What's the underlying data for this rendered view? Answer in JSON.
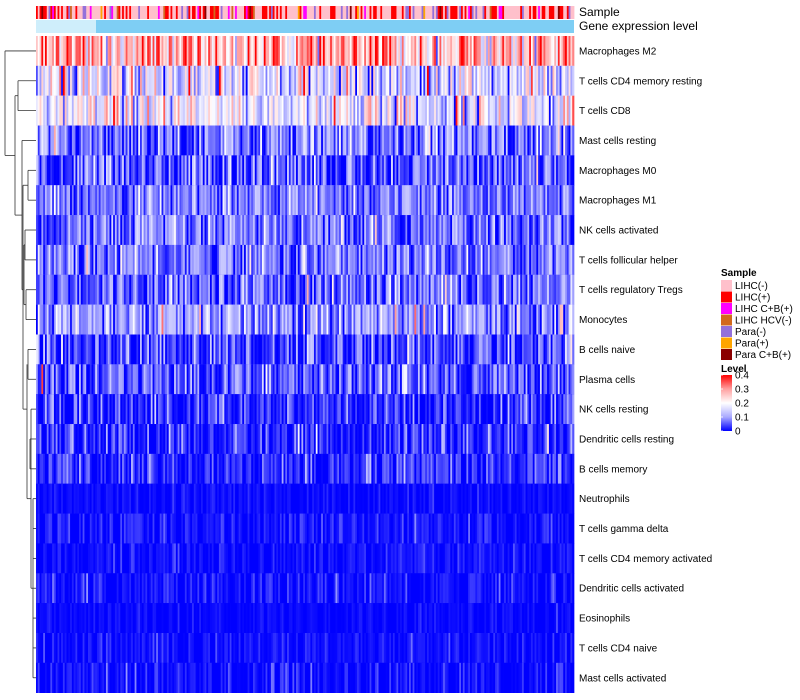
{
  "chart_data": {
    "type": "heatmap",
    "title": "",
    "annotation_tracks": [
      {
        "key": "sample",
        "label": "Sample"
      },
      {
        "key": "expr",
        "label": "Gene expression level"
      }
    ],
    "rows": [
      {
        "label": "Macrophages M2",
        "mean": 0.27,
        "spread": 0.08
      },
      {
        "label": "T cells CD4 memory resting",
        "mean": 0.15,
        "spread": 0.08
      },
      {
        "label": "T cells CD8",
        "mean": 0.17,
        "spread": 0.07
      },
      {
        "label": "Mast cells resting",
        "mean": 0.07,
        "spread": 0.06
      },
      {
        "label": "Macrophages M0",
        "mean": 0.05,
        "spread": 0.06
      },
      {
        "label": "Macrophages M1",
        "mean": 0.07,
        "spread": 0.04
      },
      {
        "label": "NK cells activated",
        "mean": 0.06,
        "spread": 0.05
      },
      {
        "label": "T cells follicular helper",
        "mean": 0.07,
        "spread": 0.05
      },
      {
        "label": "T cells regulatory  Tregs",
        "mean": 0.06,
        "spread": 0.05
      },
      {
        "label": "Monocytes",
        "mean": 0.09,
        "spread": 0.06
      },
      {
        "label": "B cells naive",
        "mean": 0.04,
        "spread": 0.05
      },
      {
        "label": "Plasma cells",
        "mean": 0.05,
        "spread": 0.05
      },
      {
        "label": "NK cells resting",
        "mean": 0.02,
        "spread": 0.04
      },
      {
        "label": "Dendritic cells resting",
        "mean": 0.02,
        "spread": 0.04
      },
      {
        "label": "B cells memory",
        "mean": 0.02,
        "spread": 0.04
      },
      {
        "label": "Neutrophils",
        "mean": 0.005,
        "spread": 0.01
      },
      {
        "label": "T cells gamma delta",
        "mean": 0.01,
        "spread": 0.02
      },
      {
        "label": "T cells CD4 memory activated",
        "mean": 0.006,
        "spread": 0.015
      },
      {
        "label": "Dendritic cells activated",
        "mean": 0.008,
        "spread": 0.02
      },
      {
        "label": "Eosinophils",
        "mean": 0.004,
        "spread": 0.01
      },
      {
        "label": "T cells CD4 naive",
        "mean": 0.006,
        "spread": 0.015
      },
      {
        "label": "Mast cells activated",
        "mean": 0.007,
        "spread": 0.02
      }
    ],
    "n_columns": 300,
    "color_scale": {
      "min": 0,
      "max": 0.4,
      "stops": [
        {
          "value": 0,
          "color": "#0000ff"
        },
        {
          "value": 0.1,
          "color": "#aaaaff"
        },
        {
          "value": 0.2,
          "color": "#ffffff"
        },
        {
          "value": 0.3,
          "color": "#ffa0a0"
        },
        {
          "value": 0.4,
          "color": "#ff0000"
        }
      ]
    },
    "expr_color": "#7ecef4",
    "legend": {
      "sample": {
        "title": "Sample",
        "entries": [
          {
            "label": "LIHC(-)",
            "color": "#ffc0cb"
          },
          {
            "label": "LIHC(+)",
            "color": "#ff0000"
          },
          {
            "label": "LIHC C+B(+)",
            "color": "#ff00ff"
          },
          {
            "label": "LIHC HCV(-)",
            "color": "#d2691e"
          },
          {
            "label": "Para(-)",
            "color": "#9370db"
          },
          {
            "label": "Para(+)",
            "color": "#ffa500"
          },
          {
            "label": "Para C+B(+)",
            "color": "#8b0000"
          }
        ]
      },
      "level": {
        "title": "Level",
        "ticks": [
          {
            "value": 0.4,
            "label": "0.4"
          },
          {
            "value": 0.3,
            "label": "0.3"
          },
          {
            "value": 0.2,
            "label": "0.2"
          },
          {
            "value": 0.1,
            "label": "0.1"
          },
          {
            "value": 0,
            "label": "0"
          }
        ]
      }
    }
  }
}
